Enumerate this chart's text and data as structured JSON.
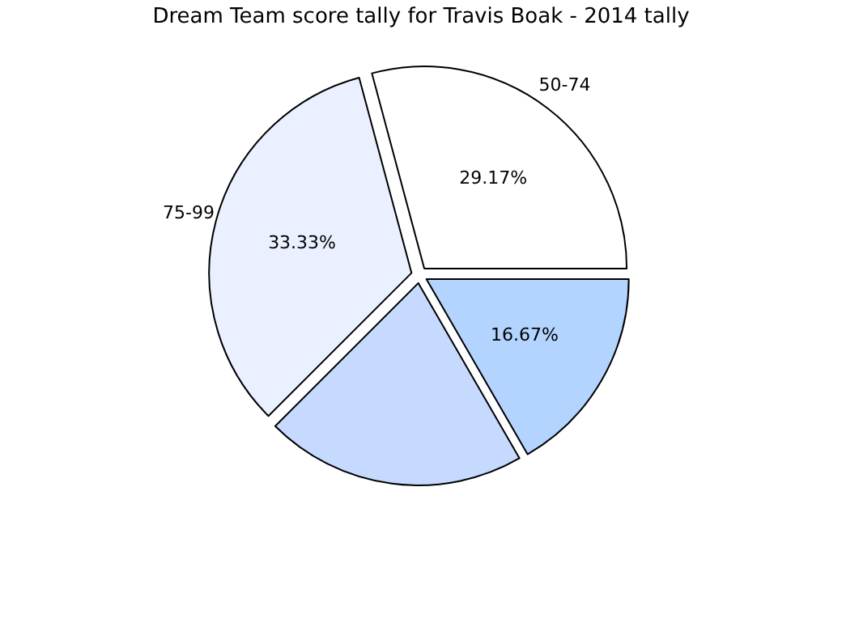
{
  "chart_data": {
    "type": "pie",
    "title": "Dream Team score tally for Travis Boak - 2014 tally",
    "categories": [
      "50-74",
      "75-99",
      null,
      null
    ],
    "values": [
      29.17,
      33.33,
      20.83,
      16.67
    ],
    "colors": [
      "#ffffff",
      "#eaf0ff",
      "#c6d9ff",
      "#b3d4ff"
    ],
    "value_labels": [
      "29.17%",
      "33.33%",
      null,
      "16.67%"
    ]
  }
}
